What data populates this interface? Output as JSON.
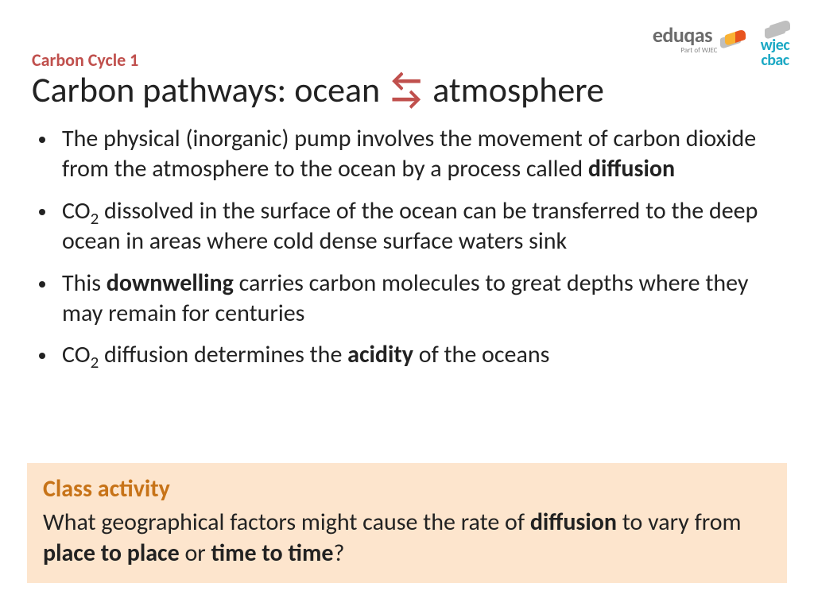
{
  "topic_label": "Carbon Cycle 1",
  "title_pre": "Carbon pathways: ocean",
  "title_post": "atmosphere",
  "logos": {
    "eduqas": "eduqas",
    "eduqas_sub": "Part of WJEC",
    "wjec_line1": "wjec",
    "wjec_line2": "cbac"
  },
  "bullets": {
    "b1_pre": "The physical (inorganic) pump involves the movement of carbon dioxide from the atmosphere to the ocean by a process called ",
    "b1_bold": "diffusion",
    "b2_pre": "CO",
    "b2_sub": "2",
    "b2_post": " dissolved in the surface of the ocean can be transferred to the deep ocean in areas where cold dense surface waters sink",
    "b3_pre": "This ",
    "b3_bold": "downwelling",
    "b3_post": " carries carbon molecules to great depths where they may remain for centuries",
    "b4_pre": "CO",
    "b4_sub": "2",
    "b4_mid": " diffusion determines the ",
    "b4_bold": "acidity",
    "b4_post": " of the oceans"
  },
  "activity": {
    "title": "Class activity",
    "t1": "What geographical factors might cause the rate of ",
    "t2_bold": "diffusion",
    "t3": " to vary from ",
    "t4_bold": "place to place",
    "t5": " or ",
    "t6_bold": "time to time",
    "t7": "?"
  },
  "colors": {
    "accent_red": "#c0504d",
    "activity_bg": "#fde5cd",
    "activity_title": "#c77318",
    "text": "#222222",
    "wjec_blue": "#1ba8c4",
    "logo_grey": "#6b6b6b"
  }
}
